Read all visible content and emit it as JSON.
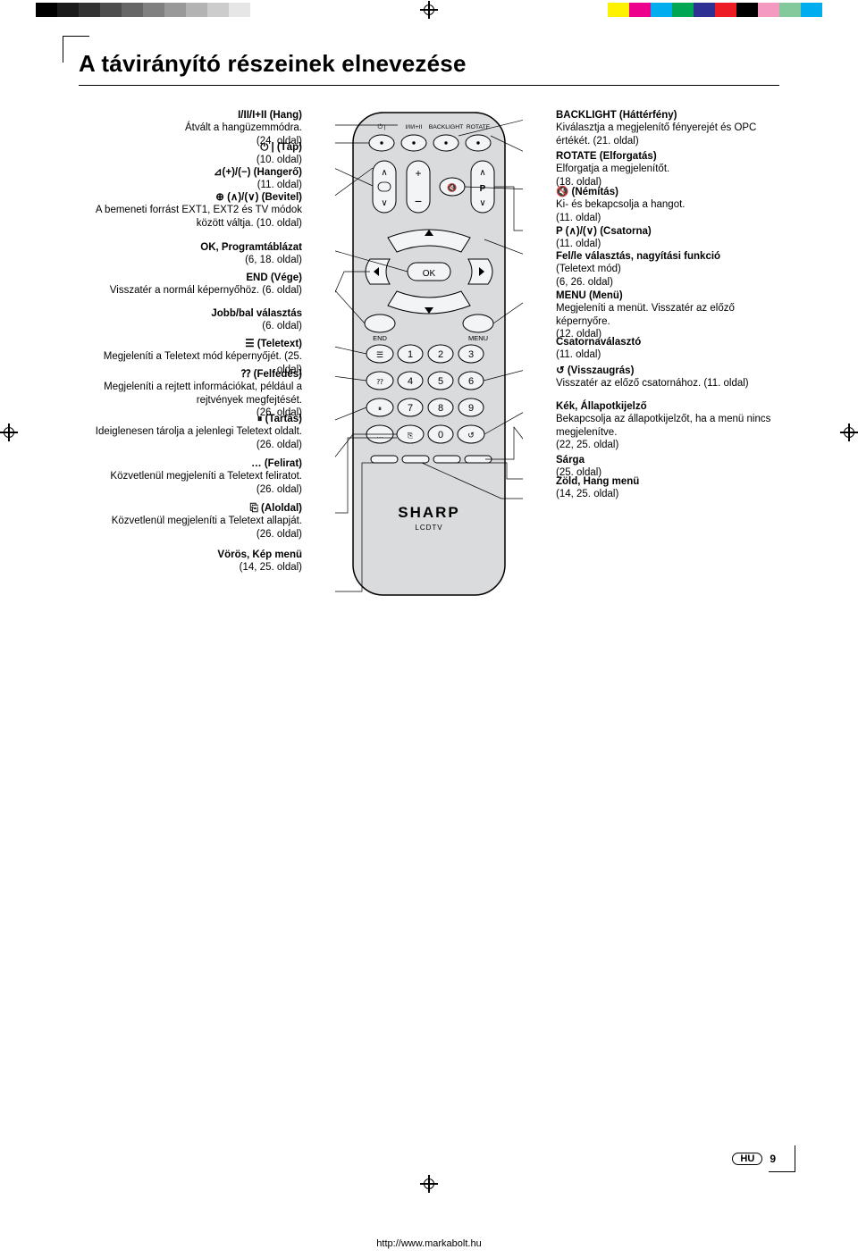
{
  "registration": {
    "grayscale_swatches": [
      "#000000",
      "#1a1a1a",
      "#333333",
      "#4d4d4d",
      "#666666",
      "#808080",
      "#999999",
      "#b3b3b3",
      "#cccccc",
      "#e6e6e6",
      "#ffffff"
    ],
    "color_swatches": [
      "#fff200",
      "#ec008c",
      "#00aeef",
      "#00a651",
      "#2e3192",
      "#ed1c24",
      "#000000",
      "#f49ac1",
      "#82ca9c",
      "#00adef"
    ]
  },
  "title": "A távirányító részeinek elnevezése",
  "footer_url": "http://www.markabolt.hu",
  "page_lang_badge": "HU",
  "page_number": "9",
  "remote": {
    "brand": "SHARP",
    "subbrand": "LCDTV",
    "top_labels": [
      "⏻ |",
      "I/II/I+II",
      "BACKLIGHT",
      "ROTATE"
    ],
    "ok": "OK",
    "end": "END",
    "menu": "MENU",
    "digits": [
      "1",
      "2",
      "3",
      "4",
      "5",
      "6",
      "7",
      "8",
      "9",
      "0"
    ],
    "body_fill": "#d9dbdc",
    "button_fill": "#f3f4f5",
    "stroke": "#000000"
  },
  "left": [
    {
      "head": "I/II/I+II (Hang)",
      "body": "Átvált a hangüzemmódra.",
      "ref": "(24. oldal)"
    },
    {
      "head": "⏻ | (Táp)",
      "ref": "(10. oldal)"
    },
    {
      "head": "⊿(+)/(−) (Hangerő)",
      "ref": "(11. oldal)"
    },
    {
      "head": "⊕ (∧)/(∨) (Bevitel)",
      "body": "A bemeneti forrást EXT1, EXT2 és TV módok között váltja. (10. oldal)"
    },
    {
      "head": "OK, Programtáblázat",
      "ref": "(6, 18. oldal)"
    },
    {
      "head": "END (Vége)",
      "body": "Visszatér a normál képernyőhöz. (6. oldal)"
    },
    {
      "head": "Jobb/bal választás",
      "ref": "(6. oldal)"
    },
    {
      "head": "☰ (Teletext)",
      "body": "Megjeleníti a Teletext mód képernyőjét. (25. oldal)"
    },
    {
      "head": "⁇ (Felfedés)",
      "body": "Megjeleníti a rejtett információkat, például a rejtvények megfejtését.",
      "ref": "(26. oldal)"
    },
    {
      "head": "⏸ (Tartás)",
      "body": "Ideiglenesen tárolja a jelenlegi Teletext oldalt.",
      "ref": "(26. oldal)"
    },
    {
      "head": "… (Felirat)",
      "body": "Közvetlenül megjeleníti a Teletext feliratot.",
      "ref": "(26. oldal)"
    },
    {
      "head": "⎘ (Aloldal)",
      "body": "Közvetlenül megjeleníti a Teletext allapját.",
      "ref": "(26. oldal)"
    },
    {
      "head": "Vörös, Kép menü",
      "ref": "(14, 25. oldal)"
    }
  ],
  "right": [
    {
      "head": "BACKLIGHT (Háttérfény)",
      "body": "Kiválasztja a megjelenítő fényerejét és OPC értékét. (21. oldal)"
    },
    {
      "head": "ROTATE (Elforgatás)",
      "body": "Elforgatja a megjelenítőt.",
      "ref": "(18. oldal)"
    },
    {
      "head": "🔇 (Némítás)",
      "body": "Ki- és bekapcsolja a hangot.",
      "ref": "(11. oldal)"
    },
    {
      "head": "P (∧)/(∨) (Csatorna)",
      "ref": "(11. oldal)"
    },
    {
      "head": "Fel/le választás, nagyítási funkció",
      "body": "(Teletext mód)",
      "ref": "(6, 26. oldal)"
    },
    {
      "head": "MENU (Menü)",
      "body": "Megjeleníti a menüt. Visszatér az előző képernyőre.",
      "ref": "(12. oldal)"
    },
    {
      "head": "Csatornaválasztó",
      "ref": "(11. oldal)"
    },
    {
      "head": "↺ (Visszaugrás)",
      "body": "Visszatér az előző csatornához. (11. oldal)"
    },
    {
      "head": "Kék, Állapotkijelző",
      "body": "Bekapcsolja az állapotkijelzőt, ha a menü nincs megjelenítve.",
      "ref": "(22, 25. oldal)"
    },
    {
      "head": "Sárga",
      "ref": "(25. oldal)"
    },
    {
      "head": "Zöld, Hang menü",
      "ref": "(14, 25. oldal)"
    }
  ],
  "left_tops": [
    0,
    36,
    64,
    92,
    148,
    182,
    222,
    256,
    290,
    340,
    390,
    440,
    492,
    532
  ],
  "right_tops": [
    0,
    46,
    86,
    130,
    158,
    202,
    254,
    286,
    326,
    386,
    410,
    432
  ]
}
